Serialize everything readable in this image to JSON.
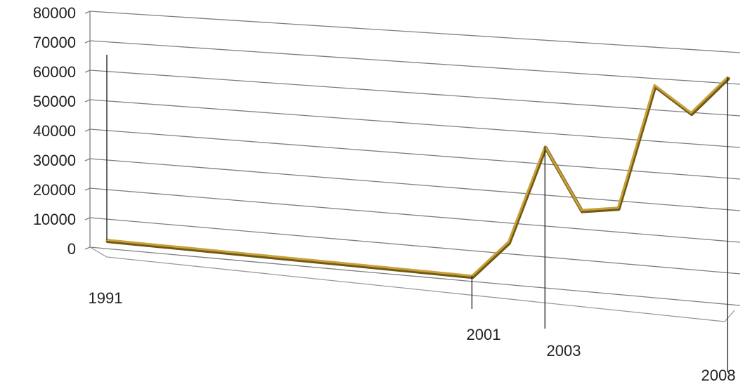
{
  "chart_data": {
    "type": "line",
    "style": "3d-perspective",
    "title": "",
    "xlabel": "",
    "ylabel": "",
    "ylim": [
      0,
      80000
    ],
    "y_ticks": [
      "80000",
      "70000",
      "60000",
      "50000",
      "40000",
      "30000",
      "20000",
      "10000",
      "0"
    ],
    "grid": true,
    "legend": "none",
    "x": [
      1991,
      1992,
      1993,
      1994,
      1995,
      1996,
      1997,
      1998,
      1999,
      2000,
      2001,
      2002,
      2003,
      2004,
      2005,
      2006,
      2007,
      2008
    ],
    "x_labels_shown": [
      "1991",
      "2001",
      "2003",
      "2008"
    ],
    "series": [
      {
        "values": [
          1500,
          1500,
          1500,
          1500,
          1500,
          1500,
          1500,
          1500,
          1500,
          1500,
          1500,
          14000,
          47000,
          27000,
          29000,
          71000,
          63000,
          76000
        ],
        "color": "#c9a13b"
      }
    ],
    "colors": {
      "series": "#c9a13b",
      "series_dark": "#6f5a14",
      "grid": "#7f7f7f",
      "text": "#222222"
    }
  }
}
